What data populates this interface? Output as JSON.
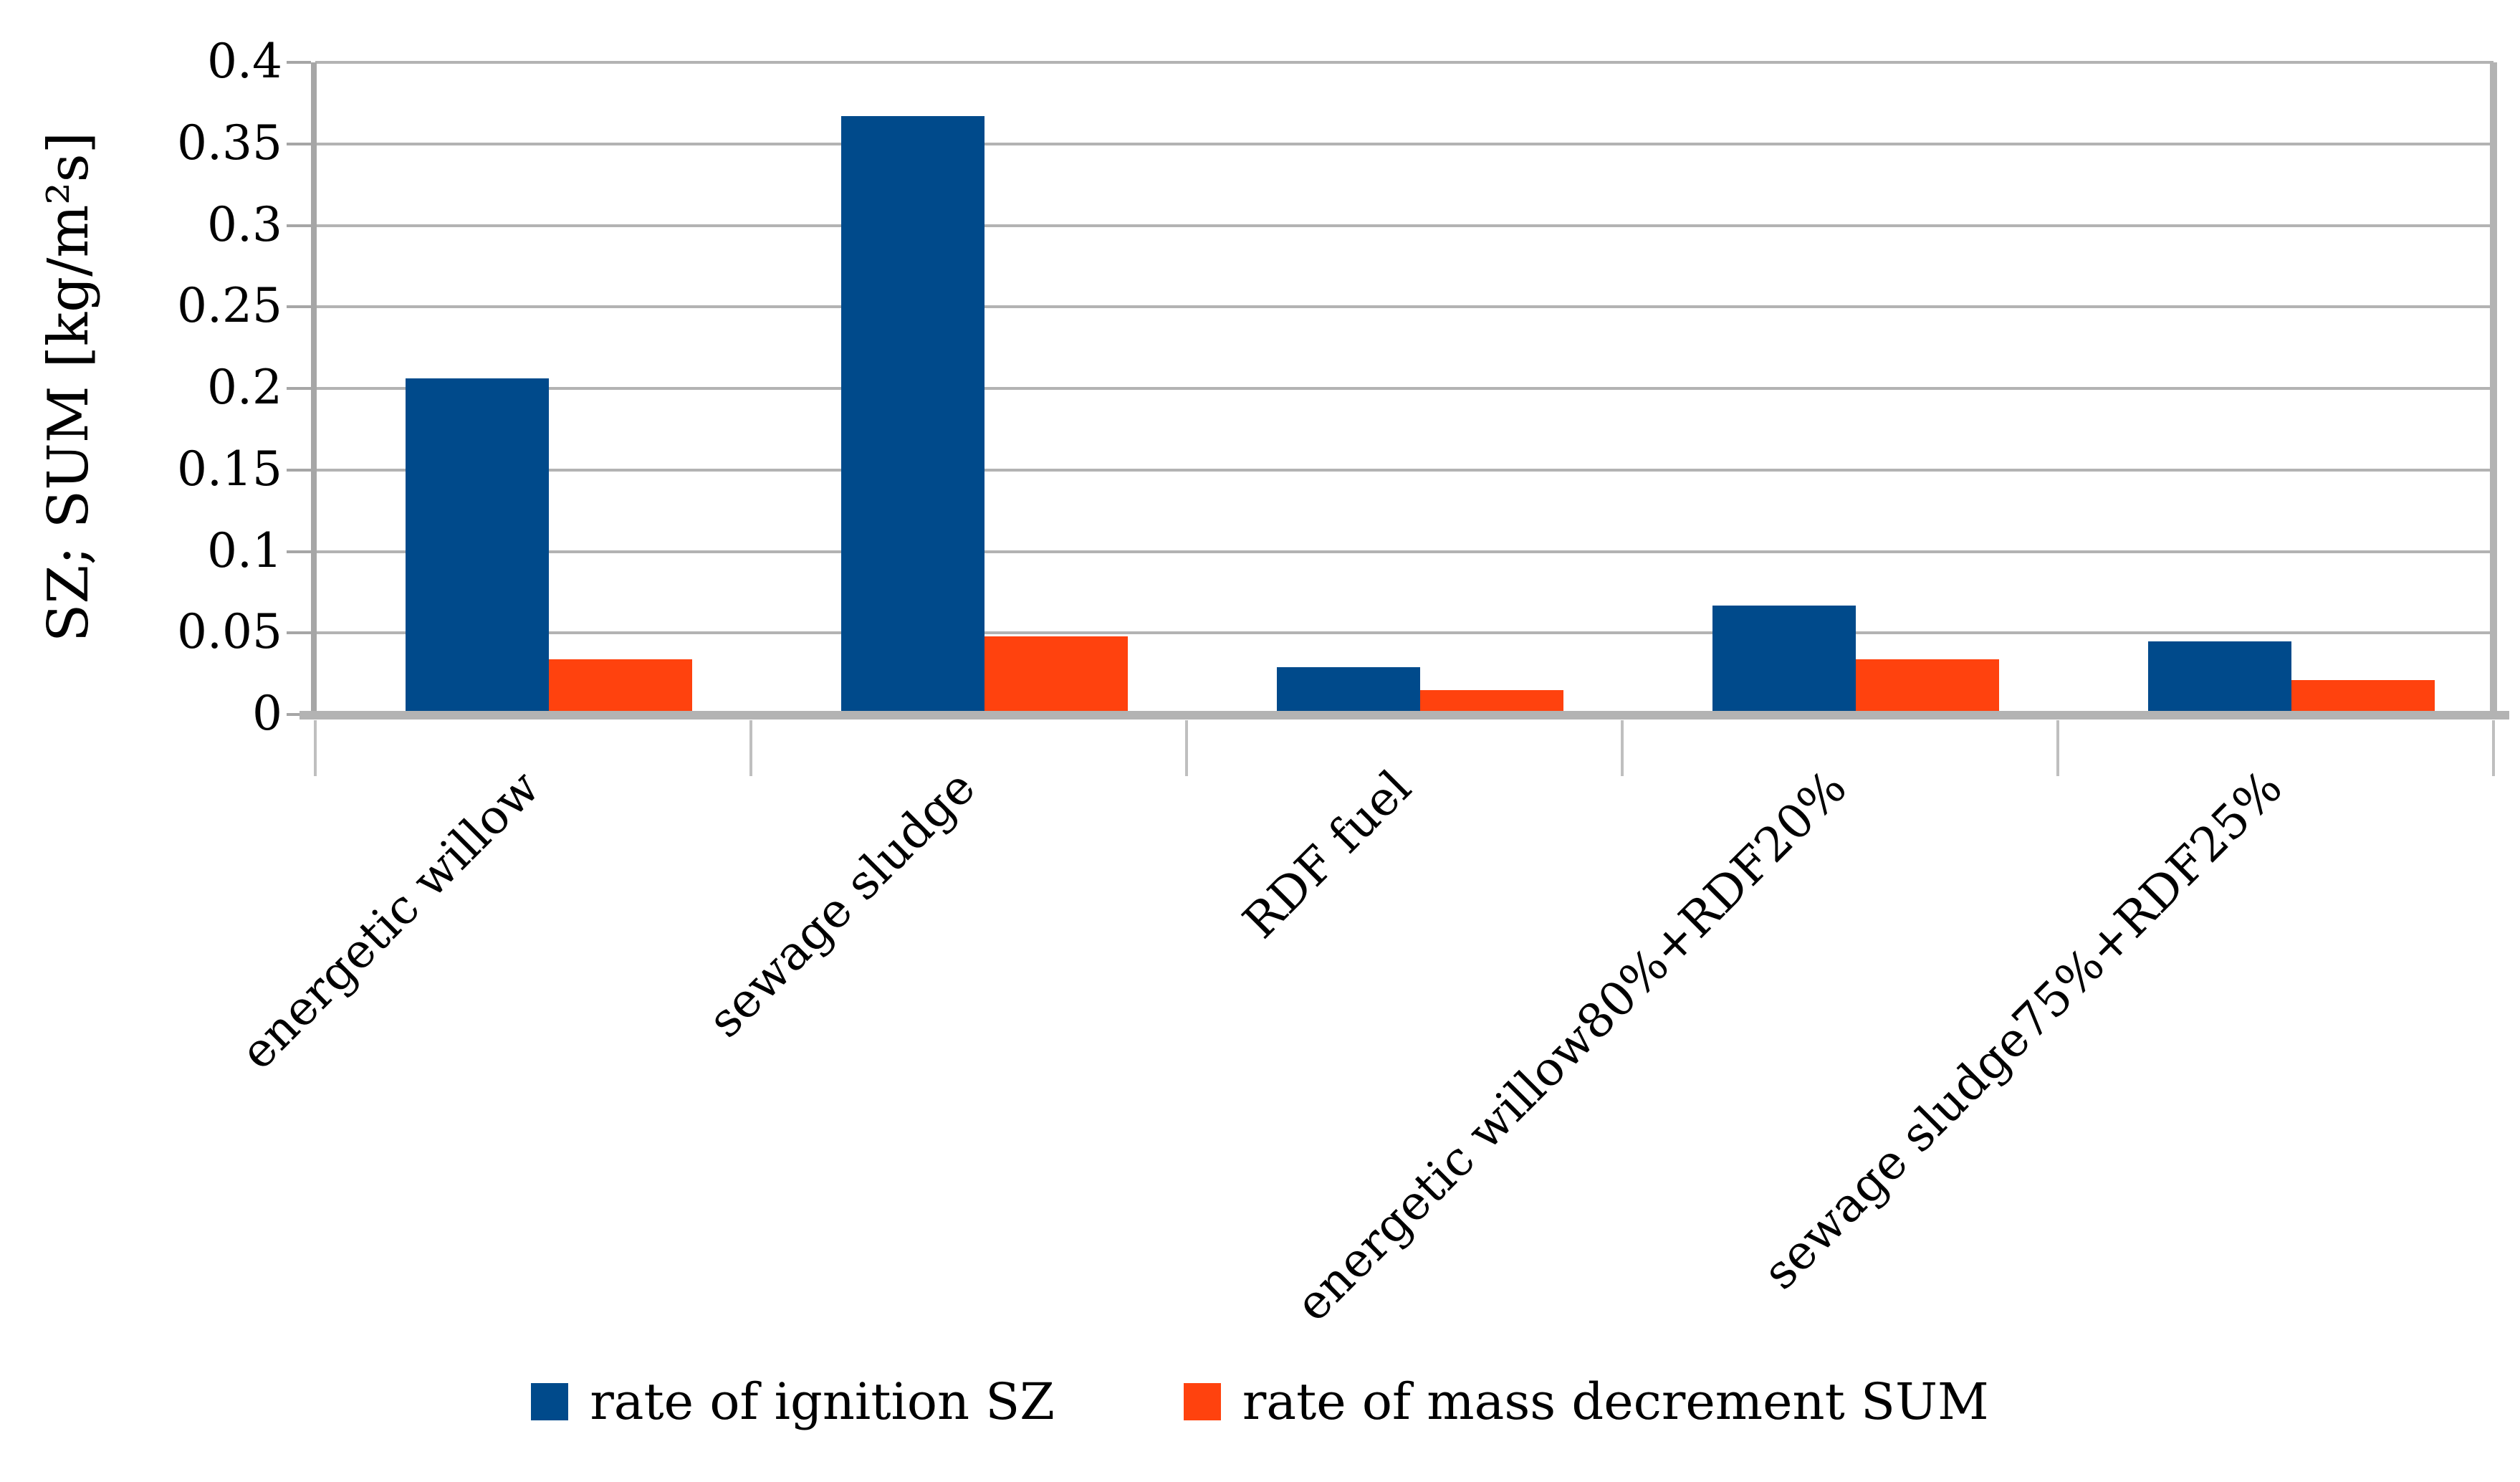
{
  "chart_data": {
    "type": "bar",
    "title": "",
    "xlabel": "",
    "ylabel": "SZ; SUM [kg/m²s]",
    "ylim": [
      0,
      0.4
    ],
    "ytick_step": 0.05,
    "ytick_labels": [
      "0",
      "0.05",
      "0.1",
      "0.15",
      "0.2",
      "0.25",
      "0.3",
      "0.35",
      "0.4"
    ],
    "grid": true,
    "legend_position": "bottom",
    "categories": [
      "energetic willow",
      "sewage sludge",
      "RDF fuel",
      "energetic willow80%+RDF20%",
      "sewage sludge75%+RDF25%"
    ],
    "series": [
      {
        "name": "rate of ignition SZ",
        "color": "#004A8B",
        "values": [
          0.206,
          0.367,
          0.029,
          0.067,
          0.045
        ]
      },
      {
        "name": "rate of mass decrement SUM",
        "color": "#FF420E",
        "values": [
          0.034,
          0.048,
          0.015,
          0.034,
          0.021
        ]
      }
    ],
    "colors": {
      "gridline": "#B3B3B3",
      "axis": "#A6A6A6",
      "tick": "#BFBFBF",
      "text": "#000000"
    }
  }
}
